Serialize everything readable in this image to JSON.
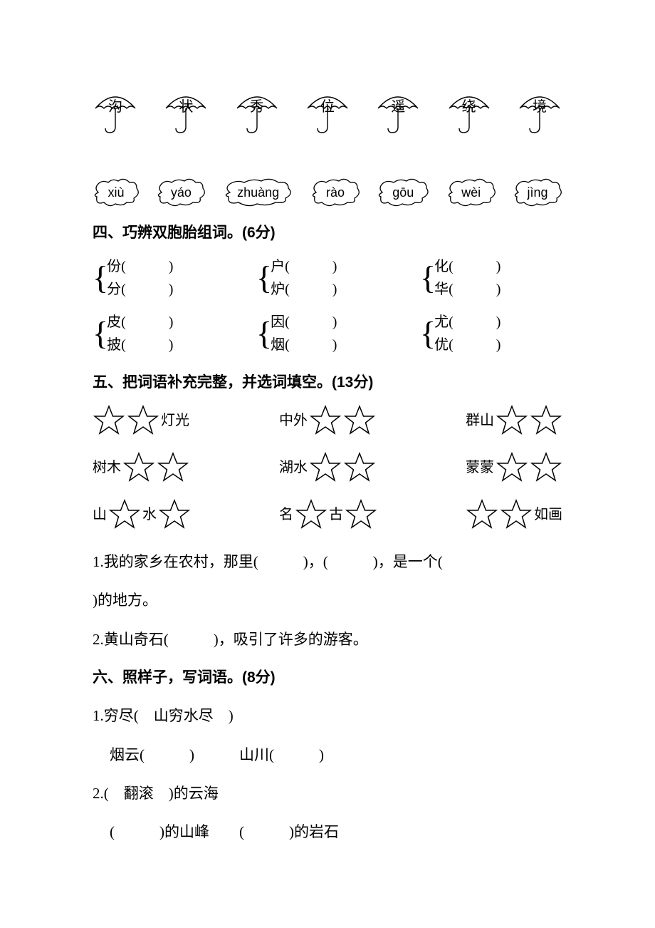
{
  "umbrellas": [
    "沟",
    "状",
    "秀",
    "位",
    "遥",
    "绕",
    "境"
  ],
  "clouds": [
    "xiù",
    "yáo",
    "zhuàng",
    "rào",
    "gōu",
    "wèi",
    "jìng"
  ],
  "section4": {
    "title": "四、巧辨双胞胎组词。(6分)",
    "groups": [
      [
        "份",
        "分"
      ],
      [
        "户",
        "炉"
      ],
      [
        "化",
        "华"
      ],
      [
        "皮",
        "披"
      ],
      [
        "因",
        "烟"
      ],
      [
        "尤",
        "优"
      ]
    ]
  },
  "section5": {
    "title": "五、把词语补充完整，并选词填空。(13分)",
    "rows": [
      [
        {
          "pre": "",
          "stars": 2,
          "post": "灯光"
        },
        {
          "pre": "中外",
          "stars": 2,
          "post": ""
        },
        {
          "pre": "群山",
          "stars": 2,
          "post": ""
        }
      ],
      [
        {
          "pre": "树木",
          "stars": 2,
          "post": ""
        },
        {
          "pre": "湖水",
          "stars": 2,
          "post": ""
        },
        {
          "pre": "蒙蒙",
          "stars": 2,
          "post": ""
        }
      ],
      [
        {
          "pre": "山",
          "stars": 1,
          "mid": "水",
          "stars2": 1,
          "post": ""
        },
        {
          "pre": "名",
          "stars": 1,
          "mid": "古",
          "stars2": 1,
          "post": ""
        },
        {
          "pre": "",
          "stars": 2,
          "post": "如画"
        }
      ]
    ],
    "q1": "1.我的家乡在农村，那里(　　　)，(　　　)，是一个(　　　",
    "q1b": ")的地方。",
    "q2": "2.黄山奇石(　　　)，吸引了许多的游客。"
  },
  "section6": {
    "title": "六、照样子，写词语。(8分)",
    "l1": "1.穷尽(　山穷水尽　)",
    "l1b": "烟云(　　　)　　　山川(　　　)",
    "l2": "2.(　翻滚　)的云海",
    "l2b": "(　　　)的山峰　　(　　　)的岩石"
  },
  "colors": {
    "stroke": "#000000",
    "bg": "#ffffff"
  }
}
